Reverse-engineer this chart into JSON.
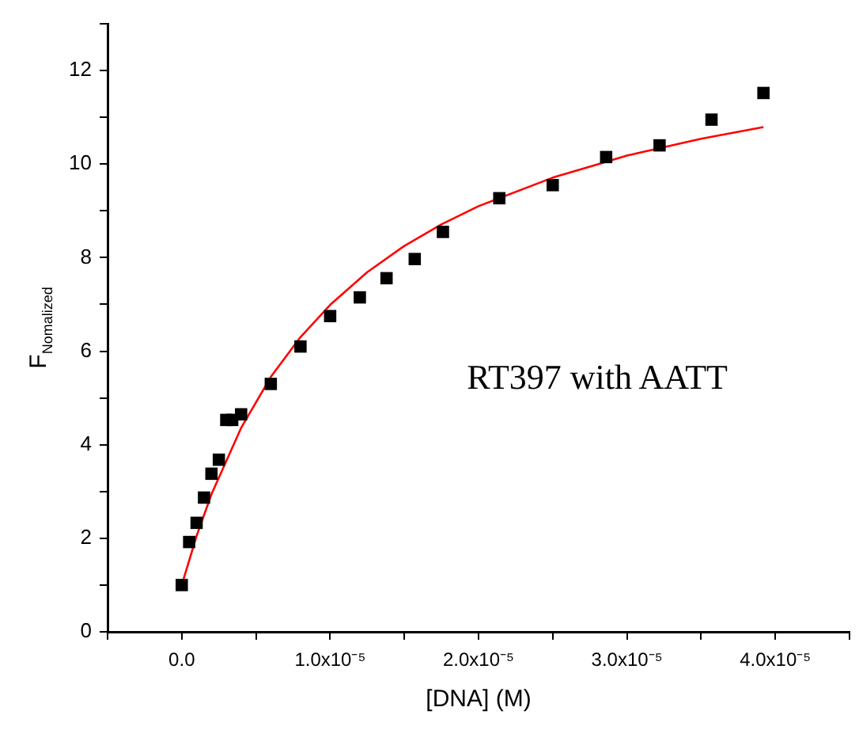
{
  "chart_data": {
    "type": "scatter",
    "xlabel": "[DNA] (M)",
    "ylabel": "F$_{Nomalized}$",
    "annotations": [
      "RT397 with AATT"
    ],
    "xlim": [
      -5e-06,
      4.5e-05
    ],
    "xticks": [
      {
        "value": -5e-06,
        "label": null
      },
      {
        "value": 0,
        "label": "0.0"
      },
      {
        "value": 5e-06,
        "label": null
      },
      {
        "value": 1e-05,
        "label": "1.0x10⁻⁵"
      },
      {
        "value": 1.5e-05,
        "label": null
      },
      {
        "value": 2e-05,
        "label": "2.0x10⁻⁵"
      },
      {
        "value": 2.5e-05,
        "label": null
      },
      {
        "value": 3e-05,
        "label": "3.0x10⁻⁵"
      },
      {
        "value": 3.5e-05,
        "label": null
      },
      {
        "value": 4e-05,
        "label": "4.0x10⁻⁵"
      },
      {
        "value": 4.5e-05,
        "label": null
      }
    ],
    "ylim": [
      0,
      13
    ],
    "yticks": [
      0,
      {
        "value": 1,
        "label": null
      },
      2,
      {
        "value": 3,
        "label": null
      },
      4,
      {
        "value": 5,
        "label": null
      },
      6,
      {
        "value": 7,
        "label": null
      },
      8,
      {
        "value": 9,
        "label": null
      },
      10,
      {
        "value": 11,
        "label": null
      },
      12,
      {
        "value": 13,
        "label": null
      }
    ],
    "grid": false,
    "legend": false,
    "marker": "square",
    "series": [
      {
        "type": "scatter",
        "color": "#000000",
        "x": [
          0,
          5e-07,
          1e-06,
          1.5e-06,
          2e-06,
          2.5e-06,
          3e-06,
          3.4e-06,
          4e-06,
          6e-06,
          8e-06,
          1e-05,
          1.2e-05,
          1.38e-05,
          1.57e-05,
          1.76e-05,
          2.14e-05,
          2.5e-05,
          2.86e-05,
          3.22e-05,
          3.57e-05,
          3.92e-05
        ],
        "values": [
          1.0,
          1.92,
          2.33,
          2.87,
          3.38,
          3.68,
          4.53,
          4.53,
          4.65,
          5.3,
          6.1,
          6.75,
          7.15,
          7.56,
          7.97,
          8.55,
          9.27,
          9.55,
          10.15,
          10.4,
          10.95,
          11.52
        ]
      },
      {
        "type": "line",
        "color": "#ff0000",
        "marker": "none",
        "x": [
          0,
          1e-06,
          2e-06,
          4e-06,
          6e-06,
          8e-06,
          1e-05,
          1.25e-05,
          1.5e-05,
          1.75e-05,
          2e-05,
          2.5e-05,
          3e-05,
          3.5e-05,
          3.92e-05
        ],
        "values": [
          1.0,
          2.05,
          2.94,
          4.36,
          5.45,
          6.3,
          6.99,
          7.69,
          8.25,
          8.71,
          9.1,
          9.71,
          10.18,
          10.54,
          10.79
        ]
      }
    ]
  }
}
